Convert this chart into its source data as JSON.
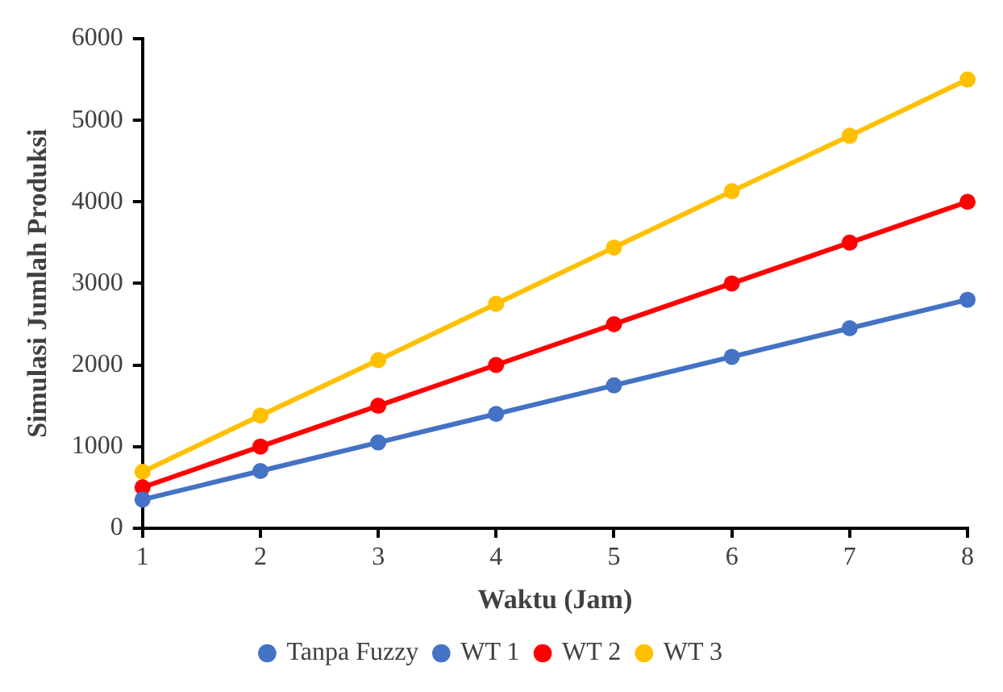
{
  "chart_data": {
    "type": "line",
    "xlabel": "Waktu (Jam)",
    "ylabel": "Simulasi Jumlah Produksi",
    "x": [
      1,
      2,
      3,
      4,
      5,
      6,
      7,
      8
    ],
    "series": [
      {
        "name": "Tanpa Fuzzy",
        "color": "#4472c4",
        "values": [
          null,
          null,
          null,
          null,
          null,
          null,
          null,
          null
        ]
      },
      {
        "name": "WT 1",
        "color": "#4472c4",
        "values": [
          350,
          700,
          1050,
          1400,
          1750,
          2100,
          2450,
          2800
        ]
      },
      {
        "name": "WT 2",
        "color": "#ff0000",
        "values": [
          500,
          1000,
          1500,
          2000,
          2500,
          3000,
          3500,
          4000
        ]
      },
      {
        "name": "WT 3",
        "color": "#ffc000",
        "values": [
          690,
          1380,
          2060,
          2750,
          3440,
          4130,
          4810,
          5500
        ]
      }
    ],
    "xlim": [
      1,
      8
    ],
    "xticks": [
      1,
      2,
      3,
      4,
      5,
      6,
      7,
      8
    ],
    "ylim": [
      0,
      6000
    ],
    "yticks": [
      0,
      1000,
      2000,
      3000,
      4000,
      5000,
      6000
    ],
    "grid": false,
    "legend": "bottom",
    "marker": "circle",
    "line_style": "solid"
  }
}
